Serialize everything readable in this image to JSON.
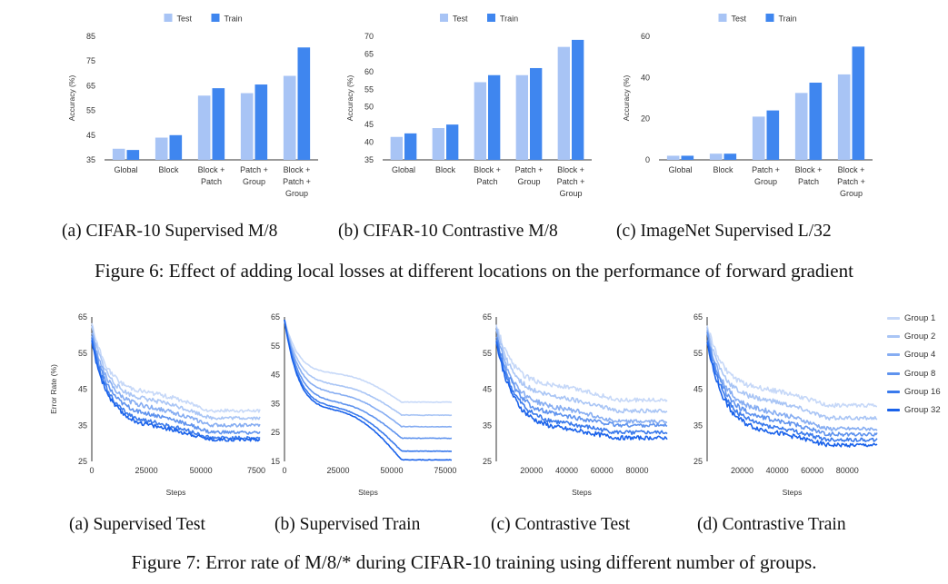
{
  "figure6": {
    "caption": "Figure 6: Effect of adding local losses at different locations on the performance of forward gradient",
    "subcaptions": [
      "(a) CIFAR-10 Supervised M/8",
      "(b) CIFAR-10 Contrastive M/8",
      "(c) ImageNet Supervised L/32"
    ]
  },
  "figure7": {
    "caption": "Figure 7: Error rate of M/8/* during CIFAR-10 training using different number of groups.",
    "subcaptions": [
      "(a) Supervised Test",
      "(b) Supervised Train",
      "(c) Contrastive Test",
      "(d) Contrastive Train"
    ],
    "legend": [
      "Group 1",
      "Group 2",
      "Group 4",
      "Group 8",
      "Group 16",
      "Group 32"
    ]
  },
  "colors": {
    "test": "#a8c4f5",
    "train": "#3f86ef",
    "groups": [
      "#c6d8f8",
      "#a9c5f5",
      "#86adf2",
      "#5f93ee",
      "#3a7aec",
      "#1a62ea"
    ]
  },
  "chart_data": [
    {
      "id": "f6a",
      "type": "bar",
      "ylabel": "Accuracy (%)",
      "yticks": [
        35,
        45,
        55,
        65,
        75,
        85
      ],
      "ylim": [
        35,
        85
      ],
      "categories": [
        [
          "Global"
        ],
        [
          "Block"
        ],
        [
          "Block +",
          "Patch"
        ],
        [
          "Patch +",
          "Group"
        ],
        [
          "Block +",
          "Patch +",
          "Group"
        ]
      ],
      "series": [
        {
          "name": "Test",
          "values": [
            39.5,
            44,
            61,
            62,
            69
          ]
        },
        {
          "name": "Train",
          "values": [
            39,
            45,
            64,
            65.5,
            80.5
          ]
        }
      ],
      "legend_position": "top"
    },
    {
      "id": "f6b",
      "type": "bar",
      "ylabel": "Accuracy (%)",
      "yticks": [
        35,
        40,
        45,
        50,
        55,
        60,
        65,
        70
      ],
      "ylim": [
        35,
        70
      ],
      "categories": [
        [
          "Global"
        ],
        [
          "Block"
        ],
        [
          "Block +",
          "Patch"
        ],
        [
          "Patch +",
          "Group"
        ],
        [
          "Block +",
          "Patch +",
          "Group"
        ]
      ],
      "series": [
        {
          "name": "Test",
          "values": [
            41.5,
            44,
            57,
            59,
            67
          ]
        },
        {
          "name": "Train",
          "values": [
            42.5,
            45,
            59,
            61,
            69
          ]
        }
      ],
      "legend_position": "top"
    },
    {
      "id": "f6c",
      "type": "bar",
      "ylabel": "Accuracy (%)",
      "yticks": [
        0,
        20,
        40,
        60
      ],
      "ylim": [
        0,
        60
      ],
      "categories": [
        [
          "Global"
        ],
        [
          "Block"
        ],
        [
          "Patch +",
          "Group"
        ],
        [
          "Block +",
          "Patch"
        ],
        [
          "Block +",
          "Patch +",
          "Group"
        ]
      ],
      "series": [
        {
          "name": "Test",
          "values": [
            2,
            3,
            21,
            32.5,
            41.5
          ]
        },
        {
          "name": "Train",
          "values": [
            2,
            3,
            24,
            37.5,
            55
          ]
        }
      ],
      "legend_position": "top"
    },
    {
      "id": "f7a",
      "type": "line",
      "xlabel": "Steps",
      "ylabel": "Error Rate (%)",
      "xlim": [
        0,
        77000
      ],
      "xticks": [
        0,
        25000,
        50000
      ],
      "xtick_labels": [
        "0",
        "25000",
        "50000"
      ],
      "xtick_last_label": "7500",
      "ylim": [
        25,
        65
      ],
      "yticks": [
        25,
        35,
        45,
        55,
        65
      ],
      "series": [
        {
          "name": "Group 1",
          "start": 63,
          "end": 39,
          "mid": 44,
          "noise": 0.7
        },
        {
          "name": "Group 2",
          "start": 62,
          "end": 37,
          "mid": 42,
          "noise": 0.7
        },
        {
          "name": "Group 4",
          "start": 61,
          "end": 35,
          "mid": 40,
          "noise": 0.7
        },
        {
          "name": "Group 8",
          "start": 60,
          "end": 33,
          "mid": 38,
          "noise": 0.7
        },
        {
          "name": "Group 16",
          "start": 59,
          "end": 31.5,
          "mid": 36,
          "noise": 0.7
        },
        {
          "name": "Group 32",
          "start": 58,
          "end": 31,
          "mid": 35,
          "noise": 0.7
        }
      ]
    },
    {
      "id": "f7b",
      "type": "line",
      "xlabel": "Steps",
      "xlim": [
        0,
        78000
      ],
      "xticks": [
        0,
        25000,
        50000,
        75000
      ],
      "xtick_labels": [
        "0",
        "25000",
        "50000",
        "75000"
      ],
      "ylim": [
        15,
        65
      ],
      "yticks": [
        15,
        25,
        35,
        45,
        55,
        65
      ],
      "series": [
        {
          "name": "Group 1",
          "start": 64,
          "end": 35.5,
          "mid": 45,
          "noise": 0.15
        },
        {
          "name": "Group 2",
          "start": 64,
          "end": 31,
          "mid": 41,
          "noise": 0.15
        },
        {
          "name": "Group 4",
          "start": 64,
          "end": 27,
          "mid": 38,
          "noise": 0.15
        },
        {
          "name": "Group 8",
          "start": 64,
          "end": 23,
          "mid": 35,
          "noise": 0.15
        },
        {
          "name": "Group 16",
          "start": 64,
          "end": 18.5,
          "mid": 33,
          "noise": 0.15
        },
        {
          "name": "Group 32",
          "start": 64,
          "end": 15.5,
          "mid": 32,
          "noise": 0.15
        }
      ]
    },
    {
      "id": "f7c",
      "type": "line",
      "xlabel": "Steps",
      "xlim": [
        0,
        97000
      ],
      "xticks": [
        20000,
        40000,
        60000,
        80000
      ],
      "xtick_labels": [
        "20000",
        "40000",
        "60000",
        "80000"
      ],
      "ylim": [
        25,
        65
      ],
      "yticks": [
        25,
        35,
        45,
        55,
        65
      ],
      "series": [
        {
          "name": "Group 1",
          "start": 63,
          "end": 42,
          "mid": 46,
          "noise": 0.8
        },
        {
          "name": "Group 2",
          "start": 62,
          "end": 39,
          "mid": 43,
          "noise": 0.8
        },
        {
          "name": "Group 4",
          "start": 61,
          "end": 36,
          "mid": 40,
          "noise": 0.8
        },
        {
          "name": "Group 8",
          "start": 60,
          "end": 35,
          "mid": 38,
          "noise": 0.8
        },
        {
          "name": "Group 16",
          "start": 59,
          "end": 33,
          "mid": 36,
          "noise": 0.8
        },
        {
          "name": "Group 32",
          "start": 58,
          "end": 31.5,
          "mid": 34.5,
          "noise": 0.8
        }
      ]
    },
    {
      "id": "f7d",
      "type": "line",
      "xlabel": "Steps",
      "xlim": [
        0,
        97000
      ],
      "xticks": [
        20000,
        40000,
        60000,
        80000
      ],
      "xtick_labels": [
        "20000",
        "40000",
        "60000",
        "80000"
      ],
      "ylim": [
        25,
        65
      ],
      "yticks": [
        25,
        35,
        45,
        55,
        65
      ],
      "series": [
        {
          "name": "Group 1",
          "start": 63,
          "end": 40.5,
          "mid": 45,
          "noise": 0.8
        },
        {
          "name": "Group 2",
          "start": 62,
          "end": 37,
          "mid": 42,
          "noise": 0.8
        },
        {
          "name": "Group 4",
          "start": 61,
          "end": 34,
          "mid": 39,
          "noise": 0.8
        },
        {
          "name": "Group 8",
          "start": 60,
          "end": 32.5,
          "mid": 37,
          "noise": 0.8
        },
        {
          "name": "Group 16",
          "start": 59,
          "end": 31,
          "mid": 35,
          "noise": 0.8
        },
        {
          "name": "Group 32",
          "start": 58,
          "end": 29.5,
          "mid": 33.5,
          "noise": 0.8
        }
      ]
    }
  ]
}
